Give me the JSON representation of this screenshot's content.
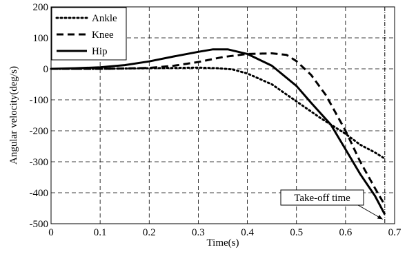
{
  "chart_data": {
    "type": "line",
    "xlabel": "Time(s)",
    "ylabel": "Angular velocity(deg/s)",
    "xlim": [
      0,
      0.7
    ],
    "ylim": [
      -500,
      200
    ],
    "xticks": [
      0,
      0.1,
      0.2,
      0.3,
      0.4,
      0.5,
      0.6,
      0.7
    ],
    "yticks": [
      200,
      100,
      0,
      -100,
      -200,
      -300,
      -400,
      -500
    ],
    "grid": true,
    "legend_position": "top-left",
    "series": [
      {
        "name": "Ankle",
        "style": "dotted",
        "color": "#000000",
        "x": [
          0,
          0.05,
          0.1,
          0.15,
          0.2,
          0.25,
          0.3,
          0.34,
          0.37,
          0.4,
          0.45,
          0.5,
          0.55,
          0.6,
          0.63,
          0.66,
          0.68
        ],
        "y": [
          0,
          0,
          0,
          1,
          2,
          3,
          4,
          2,
          -2,
          -15,
          -50,
          -105,
          -160,
          -210,
          -245,
          -270,
          -290
        ]
      },
      {
        "name": "Knee",
        "style": "dashed",
        "color": "#000000",
        "x": [
          0,
          0.05,
          0.1,
          0.15,
          0.2,
          0.25,
          0.3,
          0.35,
          0.4,
          0.45,
          0.48,
          0.5,
          0.53,
          0.56,
          0.6,
          0.63,
          0.66,
          0.68
        ],
        "y": [
          0,
          0,
          0,
          1,
          3,
          10,
          22,
          38,
          48,
          50,
          45,
          25,
          -20,
          -85,
          -200,
          -300,
          -385,
          -440
        ]
      },
      {
        "name": "Hip",
        "style": "solid",
        "color": "#000000",
        "x": [
          0,
          0.05,
          0.1,
          0.15,
          0.2,
          0.25,
          0.3,
          0.33,
          0.36,
          0.4,
          0.45,
          0.5,
          0.53,
          0.57,
          0.6,
          0.63,
          0.66,
          0.68
        ],
        "y": [
          0,
          2,
          5,
          12,
          24,
          40,
          55,
          63,
          63,
          48,
          10,
          -55,
          -110,
          -180,
          -260,
          -340,
          -410,
          -470
        ]
      }
    ],
    "annotations": [
      {
        "text": "Take-off time",
        "arrow_to_x": 0.68,
        "arrow_to_y": -490,
        "marker_x": 0.68
      }
    ]
  }
}
